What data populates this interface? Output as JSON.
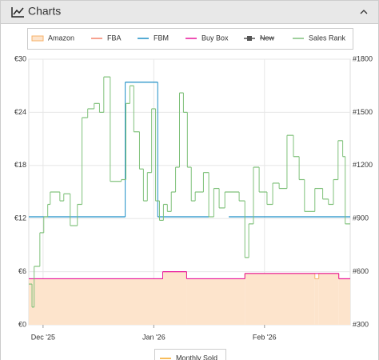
{
  "panel": {
    "title": "Charts"
  },
  "chart_data": {
    "type": "step",
    "series": [
      {
        "name": "Amazon",
        "color": "#f7b26a",
        "fill": "#fde4cc",
        "x": [
          -4,
          33.5,
          40.2,
          56.5,
          76.1,
          77.2,
          82.8
        ],
        "values": [
          5.2,
          6.0,
          5.2,
          5.8,
          5.2,
          5.8,
          5.2
        ]
      },
      {
        "name": "FBA",
        "color": "#f4836b",
        "x": [],
        "values": []
      },
      {
        "name": "FBM",
        "color": "#1e8fc6",
        "x": [
          -4,
          23.0,
          32.1,
          46.4,
          52.0
        ],
        "values": [
          12.2,
          27.4,
          12.2,
          null,
          12.2
        ]
      },
      {
        "name": "Buy Box",
        "color": "#e8179b",
        "x": [
          -4,
          33.5,
          40.2,
          56.5,
          82.8
        ],
        "values": [
          5.2,
          6.0,
          5.2,
          5.8,
          5.2
        ]
      },
      {
        "name": "New",
        "color": "#555555",
        "hidden": true,
        "x": [],
        "values": []
      },
      {
        "name": "Sales Rank",
        "color": "#7fc17a",
        "axis": "y2",
        "x": [
          -4,
          -3.1,
          -2.5,
          -0.9,
          0.2,
          1.3,
          2.0,
          4.7,
          5.8,
          7.6,
          9.6,
          10.9,
          12.5,
          14.3,
          15.8,
          17.0,
          18.8,
          21.9,
          23.2,
          24.3,
          25.4,
          27.0,
          28.1,
          29.2,
          30.4,
          31.5,
          32.6,
          33.7,
          34.8,
          35.9,
          37.1,
          38.2,
          39.3,
          40.4,
          41.5,
          42.6,
          44.9,
          46.4,
          47.8,
          49.3,
          50.9,
          54.9,
          56.5,
          57.6,
          58.9,
          60.5,
          62.7,
          64.3,
          66.1,
          68.3,
          70.1,
          71.7,
          73.2,
          76.1,
          78.3,
          79.9,
          81.3,
          82.6,
          83.9,
          84.6
        ],
        "values": [
          530,
          400,
          630,
          820,
          910,
          980,
          1050,
          1000,
          1040,
          860,
          980,
          1470,
          1520,
          1550,
          1500,
          1700,
          1110,
          1120,
          1550,
          1650,
          1390,
          1180,
          1000,
          1160,
          1520,
          1000,
          890,
          980,
          940,
          1050,
          1190,
          1610,
          1500,
          1190,
          1000,
          1050,
          1160,
          910,
          1070,
          960,
          1050,
          1000,
          680,
          870,
          1190,
          1050,
          980,
          1100,
          1070,
          1370,
          1250,
          1120,
          940,
          1070,
          1010,
          980,
          1120,
          1340,
          1250,
          870
        ]
      }
    ],
    "xlim": [
      -4,
      86
    ],
    "xticks": [
      {
        "value": 0,
        "label": "Dec '25"
      },
      {
        "value": 31,
        "label": "Jan '26"
      },
      {
        "value": 62,
        "label": "Feb '26"
      }
    ],
    "ylim": [
      0,
      30
    ],
    "yticks": [
      {
        "value": 0,
        "label": "€0"
      },
      {
        "value": 6,
        "label": "€6"
      },
      {
        "value": 12,
        "label": "€12"
      },
      {
        "value": 18,
        "label": "€18"
      },
      {
        "value": 24,
        "label": "€24"
      },
      {
        "value": 30,
        "label": "€30"
      }
    ],
    "y2lim": [
      300,
      1800
    ],
    "y2ticks": [
      {
        "value": 300,
        "label": "#300"
      },
      {
        "value": 600,
        "label": "#600"
      },
      {
        "value": 900,
        "label": "#900"
      },
      {
        "value": 1200,
        "label": "#1200"
      },
      {
        "value": 1500,
        "label": "#1500"
      },
      {
        "value": 1800,
        "label": "#1800"
      }
    ],
    "grid": true
  },
  "monthly_legend": {
    "name": "Monthly Sold",
    "color": "#f5a623"
  }
}
